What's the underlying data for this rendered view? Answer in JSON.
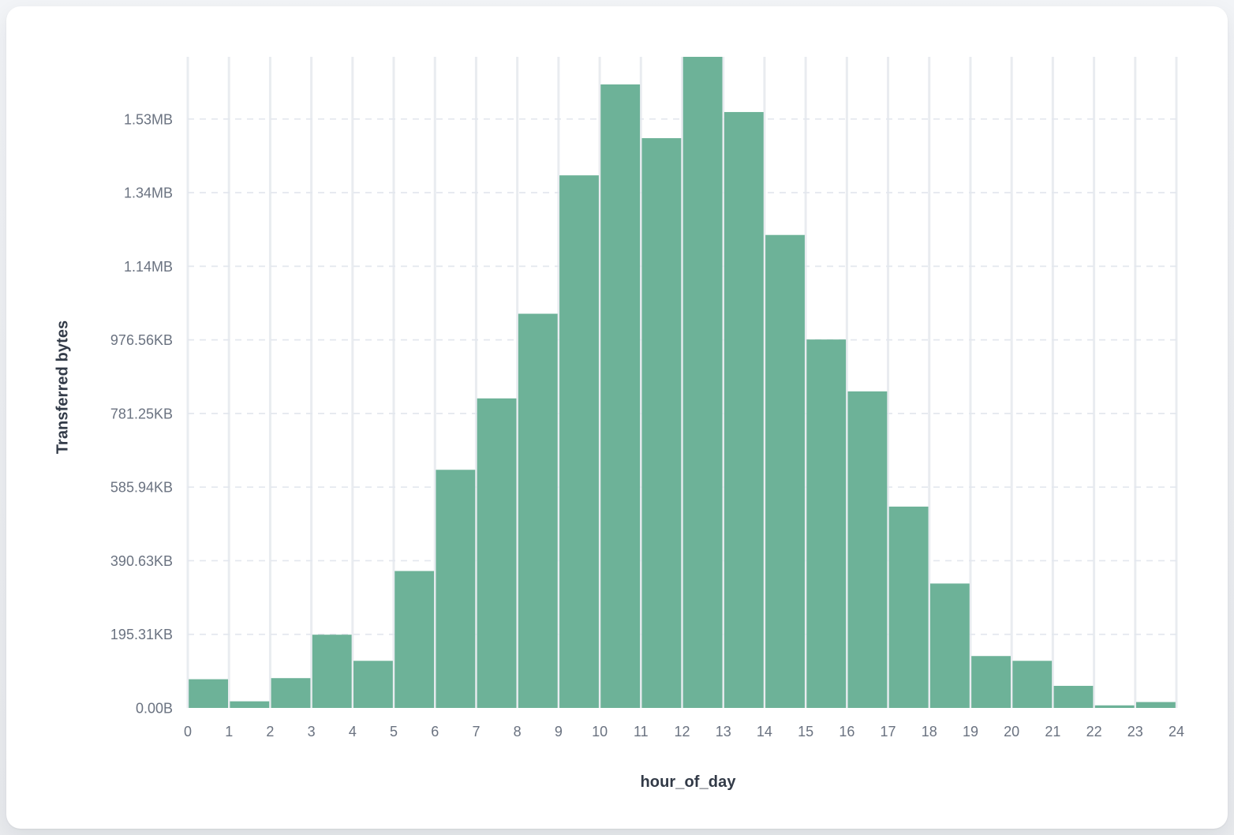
{
  "page": {
    "background_color": "#edeff2",
    "card_background_color": "#ffffff"
  },
  "chart_data": {
    "type": "bar",
    "title": "",
    "xlabel": "hour_of_day",
    "ylabel": "Transferred bytes",
    "legend": "none",
    "grid": {
      "vertical": "solid",
      "horizontal": "dashed"
    },
    "bar_color": "#6db298",
    "vertical_grid_color": "#e9ecf0",
    "horizontal_grid_color": "#e3e7ee",
    "tick_text_color": "#6a7280",
    "axis_title_color": "#323a47",
    "xlim": [
      0,
      24
    ],
    "ylim": [
      0,
      1769000
    ],
    "x_tick_labels": [
      "0",
      "1",
      "2",
      "3",
      "4",
      "5",
      "6",
      "7",
      "8",
      "9",
      "10",
      "11",
      "12",
      "13",
      "14",
      "15",
      "16",
      "17",
      "18",
      "19",
      "20",
      "21",
      "22",
      "23",
      "24"
    ],
    "y_ticks": [
      {
        "label": "0.00B",
        "bytes": 0
      },
      {
        "label": "195.31KB",
        "bytes": 200000
      },
      {
        "label": "390.63KB",
        "bytes": 400000
      },
      {
        "label": "585.94KB",
        "bytes": 600000
      },
      {
        "label": "781.25KB",
        "bytes": 800000
      },
      {
        "label": "976.56KB",
        "bytes": 1000000
      },
      {
        "label": "1.14MB",
        "bytes": 1200000
      },
      {
        "label": "1.34MB",
        "bytes": 1400000
      },
      {
        "label": "1.53MB",
        "bytes": 1600000
      }
    ],
    "categories": [
      0,
      1,
      2,
      3,
      4,
      5,
      6,
      7,
      8,
      9,
      10,
      11,
      12,
      13,
      14,
      15,
      16,
      17,
      18,
      19,
      20,
      21,
      22,
      23
    ],
    "values_bytes": [
      78000,
      18000,
      81000,
      199000,
      128000,
      372000,
      647000,
      841000,
      1071000,
      1447000,
      1694000,
      1548000,
      1769000,
      1619000,
      1285000,
      1001000,
      860000,
      547000,
      338000,
      141000,
      128000,
      60000,
      7000,
      16000
    ]
  }
}
